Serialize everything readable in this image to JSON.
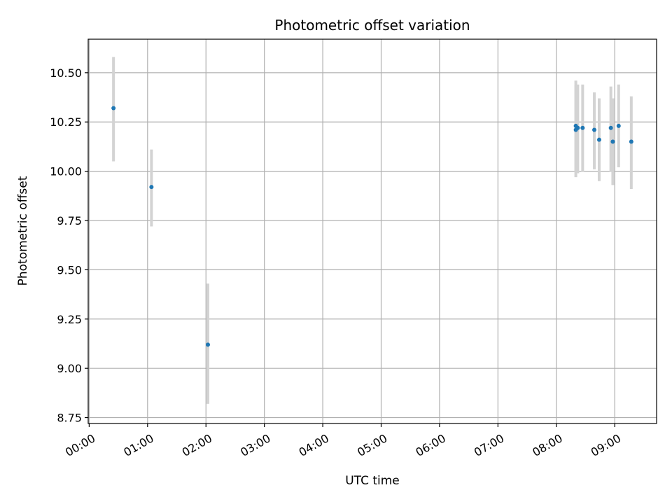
{
  "chart_data": {
    "type": "scatter",
    "title": "Photometric offset variation",
    "xlabel": "UTC time",
    "ylabel": "Photometric offset",
    "x_is_time": true,
    "xlim": [
      "-0:01",
      "9:43"
    ],
    "ylim": [
      8.72,
      10.67
    ],
    "x_ticks": [
      "00:00",
      "01:00",
      "02:00",
      "03:00",
      "04:00",
      "05:00",
      "06:00",
      "07:00",
      "08:00",
      "09:00"
    ],
    "y_ticks": [
      "8.75",
      "9.00",
      "9.25",
      "9.50",
      "9.75",
      "10.00",
      "10.25",
      "10.50"
    ],
    "grid": true,
    "point_color": "#1f77b4",
    "errorbar_color": "#d3d3d3",
    "points": [
      {
        "x": "0:25",
        "y": 10.32,
        "low": 10.05,
        "high": 10.58
      },
      {
        "x": "1:04",
        "y": 9.92,
        "low": 9.72,
        "high": 10.11
      },
      {
        "x": "2:02",
        "y": 9.12,
        "low": 8.82,
        "high": 9.43
      },
      {
        "x": "8:20",
        "y": 10.23,
        "low": 10.0,
        "high": 10.46
      },
      {
        "x": "8:20",
        "y": 10.21,
        "low": 9.97,
        "high": 10.44
      },
      {
        "x": "8:22",
        "y": 10.22,
        "low": 9.99,
        "high": 10.44
      },
      {
        "x": "8:27",
        "y": 10.22,
        "low": 10.0,
        "high": 10.44
      },
      {
        "x": "8:39",
        "y": 10.21,
        "low": 10.01,
        "high": 10.4
      },
      {
        "x": "8:44",
        "y": 10.16,
        "low": 9.95,
        "high": 10.37
      },
      {
        "x": "8:56",
        "y": 10.22,
        "low": 10.0,
        "high": 10.43
      },
      {
        "x": "8:58",
        "y": 10.15,
        "low": 9.93,
        "high": 10.37
      },
      {
        "x": "9:04",
        "y": 10.23,
        "low": 10.02,
        "high": 10.44
      },
      {
        "x": "9:17",
        "y": 10.15,
        "low": 9.91,
        "high": 10.38
      }
    ]
  }
}
